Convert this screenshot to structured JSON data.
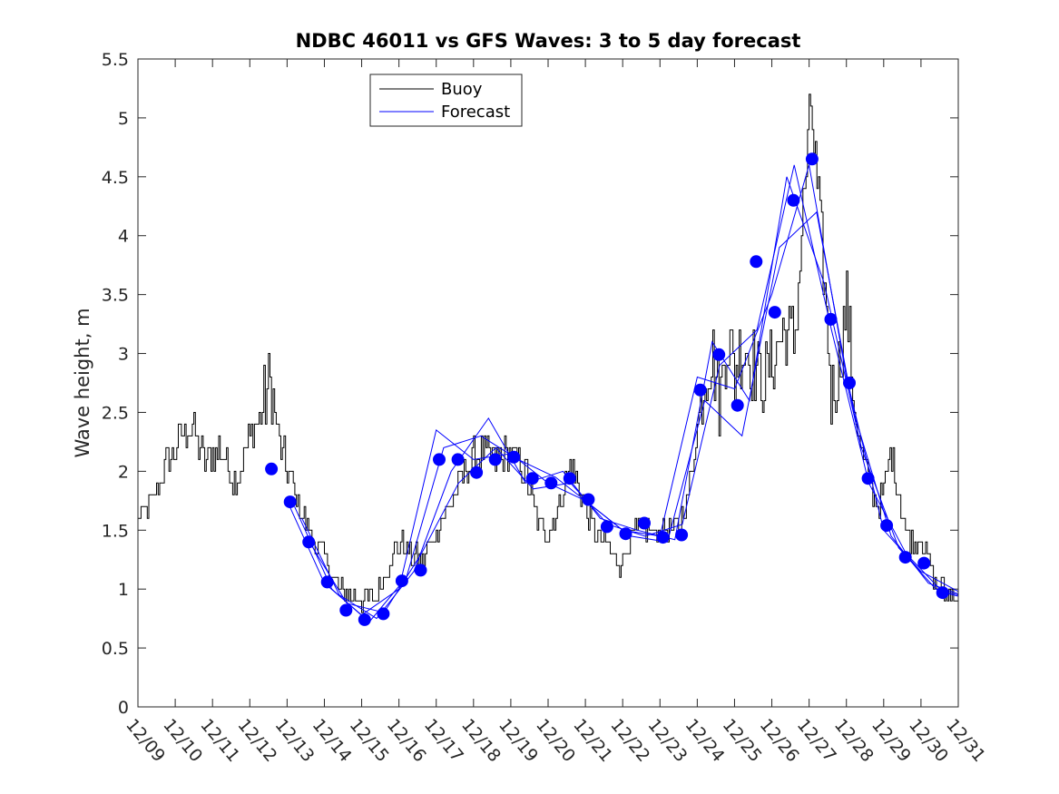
{
  "chart_data": {
    "type": "line",
    "title": "NDBC 46011 vs GFS Waves: 3 to 5 day forecast",
    "xlabel": "",
    "ylabel": "Wave height, m",
    "xlim": [
      0,
      22
    ],
    "ylim": [
      0,
      5.5
    ],
    "x_ticks": [
      0,
      1,
      2,
      3,
      4,
      5,
      6,
      7,
      8,
      9,
      10,
      11,
      12,
      13,
      14,
      15,
      16,
      17,
      18,
      19,
      20,
      21,
      22
    ],
    "x_tick_labels": [
      "12/09",
      "12/10",
      "12/11",
      "12/12",
      "12/13",
      "12/14",
      "12/15",
      "12/16",
      "12/17",
      "12/18",
      "12/19",
      "12/20",
      "12/21",
      "12/22",
      "12/23",
      "12/24",
      "12/25",
      "12/26",
      "12/27",
      "12/28",
      "12/29",
      "12/30",
      "12/31"
    ],
    "y_ticks": [
      0,
      0.5,
      1,
      1.5,
      2,
      2.5,
      3,
      3.5,
      4,
      4.5,
      5,
      5.5
    ],
    "y_tick_labels": [
      "0",
      "0.5",
      "1",
      "1.5",
      "2",
      "2.5",
      "3",
      "3.5",
      "4",
      "4.5",
      "5",
      "5.5"
    ],
    "legend": {
      "position": "top-left",
      "entries": [
        {
          "label": "Buoy",
          "color": "#000000"
        },
        {
          "label": "Forecast",
          "color": "#0000ff"
        }
      ]
    },
    "colors": {
      "buoy": "#000000",
      "forecast": "#0000ff",
      "marker": "#0000ff"
    },
    "buoy_anchors": [
      [
        0,
        1.6
      ],
      [
        0.3,
        1.7
      ],
      [
        0.7,
        2.0
      ],
      [
        1,
        2.2
      ],
      [
        1.4,
        2.4
      ],
      [
        1.8,
        2.1
      ],
      [
        2.2,
        2.2
      ],
      [
        2.6,
        1.9
      ],
      [
        3,
        2.3
      ],
      [
        3.3,
        2.5
      ],
      [
        3.55,
        2.75
      ],
      [
        3.75,
        2.3
      ],
      [
        4,
        2.0
      ],
      [
        4.3,
        1.7
      ],
      [
        4.6,
        1.5
      ],
      [
        5,
        1.25
      ],
      [
        5.3,
        1.05
      ],
      [
        5.6,
        0.95
      ],
      [
        6,
        0.9
      ],
      [
        6.4,
        0.95
      ],
      [
        6.7,
        1.2
      ],
      [
        7,
        1.4
      ],
      [
        7.3,
        1.3
      ],
      [
        7.6,
        1.25
      ],
      [
        7.9,
        1.4
      ],
      [
        8.2,
        1.65
      ],
      [
        8.5,
        1.8
      ],
      [
        8.8,
        2.05
      ],
      [
        9.2,
        2.15
      ],
      [
        9.6,
        2.1
      ],
      [
        10,
        2.15
      ],
      [
        10.4,
        2.0
      ],
      [
        10.7,
        1.6
      ],
      [
        11,
        1.45
      ],
      [
        11.3,
        1.7
      ],
      [
        11.6,
        2.05
      ],
      [
        11.9,
        1.8
      ],
      [
        12.2,
        1.5
      ],
      [
        12.6,
        1.35
      ],
      [
        12.9,
        1.2
      ],
      [
        13.2,
        1.4
      ],
      [
        13.5,
        1.55
      ],
      [
        13.8,
        1.45
      ],
      [
        14.2,
        1.5
      ],
      [
        14.5,
        1.5
      ],
      [
        14.8,
        1.9
      ],
      [
        15,
        2.4
      ],
      [
        15.2,
        2.8
      ],
      [
        15.4,
        3.0
      ],
      [
        15.6,
        2.6
      ],
      [
        15.8,
        3.2
      ],
      [
        16,
        2.8
      ],
      [
        16.2,
        3.1
      ],
      [
        16.5,
        2.9
      ],
      [
        16.8,
        2.8
      ],
      [
        17.0,
        2.95
      ],
      [
        17.3,
        3.2
      ],
      [
        17.6,
        3.1
      ],
      [
        17.9,
        4.5
      ],
      [
        18.05,
        5.1
      ],
      [
        18.2,
        4.4
      ],
      [
        18.4,
        3.6
      ],
      [
        18.6,
        2.6
      ],
      [
        18.8,
        2.9
      ],
      [
        19,
        3.4
      ],
      [
        19.2,
        2.6
      ],
      [
        19.4,
        2.1
      ],
      [
        19.6,
        1.95
      ],
      [
        19.8,
        1.7
      ],
      [
        20,
        1.8
      ],
      [
        20.2,
        2.2
      ],
      [
        20.4,
        1.8
      ],
      [
        20.6,
        1.5
      ],
      [
        20.8,
        1.4
      ],
      [
        21,
        1.45
      ],
      [
        21.2,
        1.25
      ],
      [
        21.4,
        1.05
      ],
      [
        21.6,
        0.98
      ],
      [
        21.8,
        0.95
      ],
      [
        22,
        0.95
      ]
    ],
    "forecast_points": [
      [
        3.58,
        2.02
      ],
      [
        4.08,
        1.74
      ],
      [
        4.58,
        1.4
      ],
      [
        5.08,
        1.06
      ],
      [
        5.58,
        0.82
      ],
      [
        6.08,
        0.74
      ],
      [
        6.58,
        0.79
      ],
      [
        7.08,
        1.07
      ],
      [
        7.58,
        1.16
      ],
      [
        8.08,
        2.1
      ],
      [
        8.58,
        2.1
      ],
      [
        9.08,
        1.99
      ],
      [
        9.58,
        2.1
      ],
      [
        10.08,
        2.12
      ],
      [
        10.58,
        1.94
      ],
      [
        11.08,
        1.9
      ],
      [
        11.58,
        1.94
      ],
      [
        12.08,
        1.76
      ],
      [
        12.58,
        1.53
      ],
      [
        13.08,
        1.47
      ],
      [
        13.58,
        1.56
      ],
      [
        14.08,
        1.44
      ],
      [
        14.58,
        1.46
      ],
      [
        15.08,
        2.69
      ],
      [
        15.58,
        2.99
      ],
      [
        16.08,
        2.56
      ],
      [
        16.58,
        3.78
      ],
      [
        17.08,
        3.35
      ],
      [
        17.58,
        4.3
      ],
      [
        18.08,
        4.65
      ],
      [
        18.58,
        3.29
      ],
      [
        19.08,
        2.75
      ],
      [
        19.58,
        1.94
      ],
      [
        20.08,
        1.54
      ],
      [
        20.58,
        1.27
      ],
      [
        21.08,
        1.22
      ],
      [
        21.58,
        0.97
      ]
    ],
    "forecast_runs": [
      [
        [
          4.0,
          1.75
        ],
        [
          5.0,
          1.05
        ],
        [
          6.0,
          0.78
        ],
        [
          7.0,
          1.0
        ],
        [
          8.0,
          2.35
        ],
        [
          9.0,
          2.1
        ],
        [
          10.0,
          2.15
        ],
        [
          11.0,
          1.9
        ],
        [
          12.0,
          1.75
        ],
        [
          13.0,
          1.5
        ],
        [
          14.0,
          1.45
        ],
        [
          15.0,
          2.8
        ],
        [
          16.0,
          2.7
        ],
        [
          17.0,
          3.5
        ],
        [
          18.0,
          4.6
        ],
        [
          19.0,
          2.8
        ],
        [
          20.0,
          1.5
        ],
        [
          21.0,
          1.15
        ],
        [
          22.0,
          0.98
        ]
      ],
      [
        [
          4.2,
          1.7
        ],
        [
          5.2,
          1.0
        ],
        [
          6.2,
          0.72
        ],
        [
          7.2,
          1.1
        ],
        [
          8.2,
          2.2
        ],
        [
          9.2,
          2.3
        ],
        [
          10.2,
          2.1
        ],
        [
          11.2,
          1.95
        ],
        [
          12.2,
          1.7
        ],
        [
          13.2,
          1.45
        ],
        [
          14.2,
          1.4
        ],
        [
          15.2,
          2.6
        ],
        [
          16.2,
          2.3
        ],
        [
          17.2,
          3.9
        ],
        [
          18.2,
          4.2
        ],
        [
          19.2,
          2.5
        ],
        [
          20.2,
          1.45
        ],
        [
          21.2,
          1.05
        ],
        [
          22.0,
          0.96
        ]
      ],
      [
        [
          4.4,
          1.6
        ],
        [
          5.4,
          0.95
        ],
        [
          6.4,
          0.75
        ],
        [
          7.4,
          1.15
        ],
        [
          8.4,
          2.0
        ],
        [
          9.4,
          2.45
        ],
        [
          10.4,
          1.9
        ],
        [
          11.4,
          2.0
        ],
        [
          12.4,
          1.6
        ],
        [
          13.4,
          1.5
        ],
        [
          14.4,
          1.42
        ],
        [
          15.4,
          3.1
        ],
        [
          16.4,
          2.6
        ],
        [
          17.4,
          4.5
        ],
        [
          18.4,
          3.6
        ],
        [
          19.4,
          2.2
        ],
        [
          20.4,
          1.35
        ],
        [
          21.4,
          1.0
        ],
        [
          22.0,
          0.95
        ]
      ],
      [
        [
          4.6,
          1.4
        ],
        [
          5.6,
          0.88
        ],
        [
          6.6,
          0.8
        ],
        [
          7.6,
          1.3
        ],
        [
          8.6,
          1.9
        ],
        [
          9.6,
          2.2
        ],
        [
          10.6,
          1.85
        ],
        [
          11.6,
          1.9
        ],
        [
          12.6,
          1.55
        ],
        [
          13.6,
          1.45
        ],
        [
          14.6,
          1.55
        ],
        [
          15.6,
          2.9
        ],
        [
          16.6,
          3.2
        ],
        [
          17.6,
          4.6
        ],
        [
          18.6,
          3.2
        ],
        [
          19.6,
          1.9
        ],
        [
          20.6,
          1.3
        ],
        [
          21.6,
          0.97
        ],
        [
          22.0,
          0.94
        ]
      ]
    ]
  }
}
